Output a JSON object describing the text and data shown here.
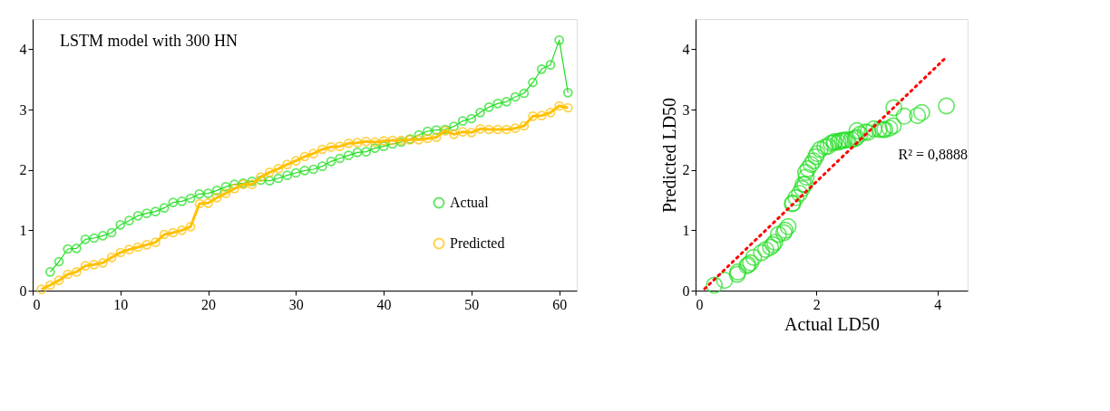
{
  "chart_data": [
    {
      "type": "line",
      "marker": "circle",
      "x": [
        1,
        2,
        3,
        4,
        5,
        6,
        7,
        8,
        9,
        10,
        11,
        12,
        13,
        14,
        15,
        16,
        17,
        18,
        19,
        20,
        21,
        22,
        23,
        24,
        25,
        26,
        27,
        28,
        29,
        30,
        31,
        32,
        33,
        34,
        35,
        36,
        37,
        38,
        39,
        40,
        41,
        42,
        43,
        44,
        45,
        46,
        47,
        48,
        49,
        50,
        51,
        52,
        53,
        54,
        55,
        56,
        57,
        58,
        59,
        60,
        61
      ],
      "series": [
        {
          "name": "Actual",
          "color": "#22dd22",
          "values": [
            null,
            0.31,
            0.48,
            0.69,
            0.7,
            0.85,
            0.87,
            0.91,
            0.96,
            1.09,
            1.16,
            1.24,
            1.28,
            1.31,
            1.37,
            1.46,
            1.48,
            1.53,
            1.6,
            1.61,
            1.66,
            1.72,
            1.76,
            1.78,
            1.81,
            1.83,
            1.82,
            1.86,
            1.91,
            1.95,
            1.99,
            2.01,
            2.06,
            2.14,
            2.19,
            2.24,
            2.29,
            2.3,
            2.36,
            2.39,
            2.43,
            2.46,
            2.51,
            2.58,
            2.64,
            2.66,
            2.67,
            2.72,
            2.81,
            2.85,
            2.95,
            3.04,
            3.1,
            3.13,
            3.21,
            3.27,
            3.45,
            3.67,
            3.74,
            4.15,
            3.28
          ]
        },
        {
          "name": "Predicted",
          "color": "#ffc000",
          "values": [
            0.02,
            0.09,
            0.17,
            0.27,
            0.31,
            0.41,
            0.43,
            0.46,
            0.55,
            0.63,
            0.68,
            0.72,
            0.76,
            0.8,
            0.93,
            0.96,
            1.0,
            1.06,
            1.44,
            1.45,
            1.54,
            1.61,
            1.69,
            1.76,
            1.76,
            1.88,
            1.96,
            2.02,
            2.09,
            2.15,
            2.22,
            2.27,
            2.34,
            2.38,
            2.39,
            2.44,
            2.45,
            2.47,
            2.46,
            2.48,
            2.49,
            2.49,
            2.5,
            2.5,
            2.52,
            2.54,
            2.65,
            2.59,
            2.63,
            2.62,
            2.68,
            2.67,
            2.67,
            2.67,
            2.69,
            2.73,
            2.89,
            2.9,
            2.95,
            3.06,
            3.03
          ]
        }
      ],
      "xlim": [
        0,
        62
      ],
      "xticks": [
        0,
        10,
        20,
        30,
        40,
        50,
        60
      ],
      "ylim": [
        0,
        4.5
      ],
      "yticks": [
        0,
        1,
        2,
        3,
        4
      ],
      "legend": "bottom right",
      "grid": false,
      "annotations": [
        "LSTM model with 300 HN"
      ]
    },
    {
      "type": "scatter",
      "xlabel": "Actual LD50",
      "ylabel": "Predicted LD50",
      "series": [
        {
          "type": "scatter",
          "marker": "circle",
          "color": "#22dd22",
          "x": [
            0.31,
            0.48,
            0.69,
            0.7,
            0.85,
            0.87,
            0.91,
            0.96,
            1.09,
            1.16,
            1.24,
            1.28,
            1.31,
            1.37,
            1.46,
            1.48,
            1.53,
            1.6,
            1.61,
            1.66,
            1.72,
            1.76,
            1.78,
            1.81,
            1.83,
            1.82,
            1.86,
            1.91,
            1.95,
            1.99,
            2.01,
            2.06,
            2.14,
            2.19,
            2.24,
            2.29,
            2.3,
            2.36,
            2.39,
            2.43,
            2.46,
            2.51,
            2.58,
            2.64,
            2.66,
            2.67,
            2.72,
            2.81,
            2.85,
            2.95,
            3.04,
            3.1,
            3.13,
            3.21,
            3.27,
            3.45,
            3.67,
            3.74,
            4.15,
            3.28
          ],
          "values": [
            0.09,
            0.17,
            0.27,
            0.31,
            0.41,
            0.43,
            0.46,
            0.55,
            0.63,
            0.68,
            0.72,
            0.76,
            0.8,
            0.93,
            0.96,
            1.0,
            1.06,
            1.44,
            1.45,
            1.54,
            1.61,
            1.69,
            1.76,
            1.76,
            1.88,
            1.96,
            2.02,
            2.09,
            2.15,
            2.22,
            2.27,
            2.34,
            2.38,
            2.39,
            2.44,
            2.45,
            2.47,
            2.46,
            2.48,
            2.49,
            2.49,
            2.5,
            2.5,
            2.52,
            2.54,
            2.65,
            2.59,
            2.63,
            2.62,
            2.68,
            2.67,
            2.67,
            2.67,
            2.69,
            2.73,
            2.89,
            2.9,
            2.95,
            3.06,
            3.03
          ]
        },
        {
          "type": "line",
          "color": "#ff0000",
          "line_style": "dotted",
          "x": [
            0.15,
            4.15
          ],
          "values": [
            0.03,
            3.87
          ]
        }
      ],
      "xlim": [
        0,
        4.5
      ],
      "xticks": [
        0,
        2,
        4
      ],
      "ylim": [
        0,
        4.5
      ],
      "yticks": [
        0,
        1,
        2,
        3,
        4
      ],
      "legend": false,
      "grid": false,
      "annotations": [
        "R² = 0,8888"
      ]
    }
  ]
}
